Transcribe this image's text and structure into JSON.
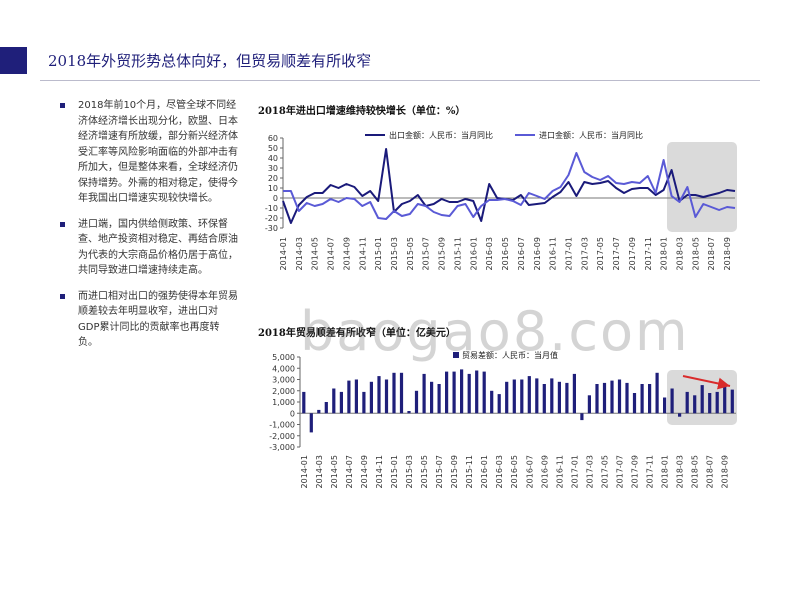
{
  "page": {
    "title": "2018年外贸形势总体向好，但贸易顺差有所收窄",
    "accent_color": "#1f1f7a",
    "watermark": "baogao8.com"
  },
  "bullets": [
    "2018年前10个月，尽管全球不同经济体经济增长出现分化，欧盟、日本经济增速有所放缓，部分新兴经济体受汇率等风险影响面临的外部冲击有所加大，但是整体来看，全球经济仍保持增势。外需的相对稳定，使得今年我国出口增速实现较快增长。",
    "进口端，国内供给侧政策、环保督查、地产投资相对稳定、再结合原油为代表的大宗商品价格仍居于高位，共同导致进口增速持续走高。",
    "而进口相对出口的强势使得本年贸易顺差较去年明显收窄，进出口对GDP累计同比的贡献率也再度转负。"
  ],
  "chart_data": [
    {
      "type": "line",
      "title": "2018年进出口增速维持较快增长（单位：%）",
      "x": [
        "2014-01",
        "2014-02",
        "2014-03",
        "2014-04",
        "2014-05",
        "2014-06",
        "2014-07",
        "2014-08",
        "2014-09",
        "2014-10",
        "2014-11",
        "2014-12",
        "2015-01",
        "2015-02",
        "2015-03",
        "2015-04",
        "2015-05",
        "2015-06",
        "2015-07",
        "2015-08",
        "2015-09",
        "2015-10",
        "2015-11",
        "2015-12",
        "2016-01",
        "2016-02",
        "2016-03",
        "2016-04",
        "2016-05",
        "2016-06",
        "2016-07",
        "2016-08",
        "2016-09",
        "2016-10",
        "2016-11",
        "2016-12",
        "2017-01",
        "2017-02",
        "2017-03",
        "2017-04",
        "2017-05",
        "2017-06",
        "2017-07",
        "2017-08",
        "2017-09",
        "2017-10",
        "2017-11",
        "2017-12",
        "2018-01",
        "2018-02",
        "2018-03",
        "2018-04",
        "2018-05",
        "2018-06",
        "2018-07",
        "2018-08",
        "2018-09",
        "2018-10"
      ],
      "x_tick_labels": [
        "2014-01",
        "2014-03",
        "2014-05",
        "2014-07",
        "2014-09",
        "2014-11",
        "2015-01",
        "2015-03",
        "2015-05",
        "2015-07",
        "2015-09",
        "2015-11",
        "2016-01",
        "2016-03",
        "2016-05",
        "2016-07",
        "2016-09",
        "2016-11",
        "2017-01",
        "2017-03",
        "2017-05",
        "2017-07",
        "2017-09",
        "2017-11",
        "2018-01",
        "2018-03",
        "2018-05",
        "2018-07",
        "2018-09"
      ],
      "series": [
        {
          "name": "出口金额：人民币：当月同比",
          "color": "#1a1a7a",
          "values": [
            -3,
            -25,
            -7,
            1,
            5,
            5,
            13,
            10,
            14,
            11,
            2,
            7,
            -3,
            49,
            -14,
            -6,
            -3,
            3,
            -8,
            -6,
            -1,
            -4,
            -4,
            -1,
            -3,
            -23,
            14,
            0,
            -1,
            -2,
            3,
            -7,
            -6,
            -5,
            1,
            6,
            16,
            2,
            16,
            14,
            15,
            17,
            10,
            5,
            9,
            10,
            10,
            3,
            8,
            28,
            -3,
            3,
            3,
            1,
            3,
            5,
            8,
            7
          ]
        },
        {
          "name": "进口金额：人民币：当月同比",
          "color": "#5a5ad6",
          "values": [
            7,
            7,
            -13,
            -5,
            -8,
            -6,
            -1,
            -4,
            0,
            -1,
            -8,
            -4,
            -20,
            -21,
            -13,
            -18,
            -16,
            -6,
            -8,
            -14,
            -17,
            -18,
            -8,
            -6,
            -19,
            -8,
            -2,
            -2,
            -1,
            -3,
            -7,
            5,
            2,
            -1,
            7,
            11,
            23,
            45,
            26,
            21,
            18,
            22,
            15,
            14,
            16,
            15,
            22,
            5,
            38,
            2,
            -4,
            11,
            -19,
            -6,
            -9,
            -12,
            -9,
            -10
          ]
        }
      ],
      "ylim": [
        -30,
        60
      ],
      "yticks": [
        60,
        50,
        40,
        30,
        20,
        10,
        0,
        -10,
        -20,
        -30
      ],
      "grid": false,
      "legend": "top"
    },
    {
      "type": "bar",
      "title": "2018年贸易顺差有所收窄（单位：亿美元）",
      "x": [
        "2014-01",
        "2014-02",
        "2014-03",
        "2014-04",
        "2014-05",
        "2014-06",
        "2014-07",
        "2014-08",
        "2014-09",
        "2014-10",
        "2014-11",
        "2014-12",
        "2015-01",
        "2015-02",
        "2015-03",
        "2015-04",
        "2015-05",
        "2015-06",
        "2015-07",
        "2015-08",
        "2015-09",
        "2015-10",
        "2015-11",
        "2015-12",
        "2016-01",
        "2016-02",
        "2016-03",
        "2016-04",
        "2016-05",
        "2016-06",
        "2016-07",
        "2016-08",
        "2016-09",
        "2016-10",
        "2016-11",
        "2016-12",
        "2017-01",
        "2017-02",
        "2017-03",
        "2017-04",
        "2017-05",
        "2017-06",
        "2017-07",
        "2017-08",
        "2017-09",
        "2017-10",
        "2017-11",
        "2017-12",
        "2018-01",
        "2018-02",
        "2018-03",
        "2018-04",
        "2018-05",
        "2018-06",
        "2018-07",
        "2018-08",
        "2018-09",
        "2018-10"
      ],
      "x_tick_labels": [
        "2014-01",
        "2014-03",
        "2014-05",
        "2014-07",
        "2014-09",
        "2014-11",
        "2015-01",
        "2015-03",
        "2015-05",
        "2015-07",
        "2015-09",
        "2015-11",
        "2016-01",
        "2016-03",
        "2016-05",
        "2016-07",
        "2016-09",
        "2016-11",
        "2017-01",
        "2017-03",
        "2017-05",
        "2017-07",
        "2017-09",
        "2017-11",
        "2018-01",
        "2018-03",
        "2018-05",
        "2018-07",
        "2018-09"
      ],
      "series": [
        {
          "name": "贸易差额：人民币：当月值",
          "color": "#1f1f7a",
          "values": [
            1900,
            -1700,
            300,
            1000,
            2200,
            1900,
            2900,
            3000,
            1900,
            2800,
            3300,
            3000,
            3600,
            3600,
            200,
            2000,
            3500,
            2800,
            2600,
            3700,
            3700,
            3900,
            3500,
            3800,
            3700,
            2000,
            1700,
            2800,
            3000,
            3000,
            3300,
            3100,
            2600,
            3100,
            2800,
            2700,
            3500,
            -600,
            1600,
            2600,
            2700,
            2900,
            3000,
            2700,
            1800,
            2600,
            2600,
            3600,
            1400,
            2200,
            -300,
            1900,
            1600,
            2500,
            1800,
            1900,
            2500,
            2100
          ]
        }
      ],
      "ylim": [
        -3000,
        5000
      ],
      "yticks": [
        5000,
        4000,
        3000,
        2000,
        1000,
        0,
        -1000,
        -2000,
        -3000
      ],
      "ytick_labels": [
        "5,000",
        "4,000",
        "3,000",
        "2,000",
        "1,000",
        "0",
        "-1,000",
        "-2,000",
        "-3,000"
      ],
      "grid": false,
      "legend": "top"
    }
  ]
}
